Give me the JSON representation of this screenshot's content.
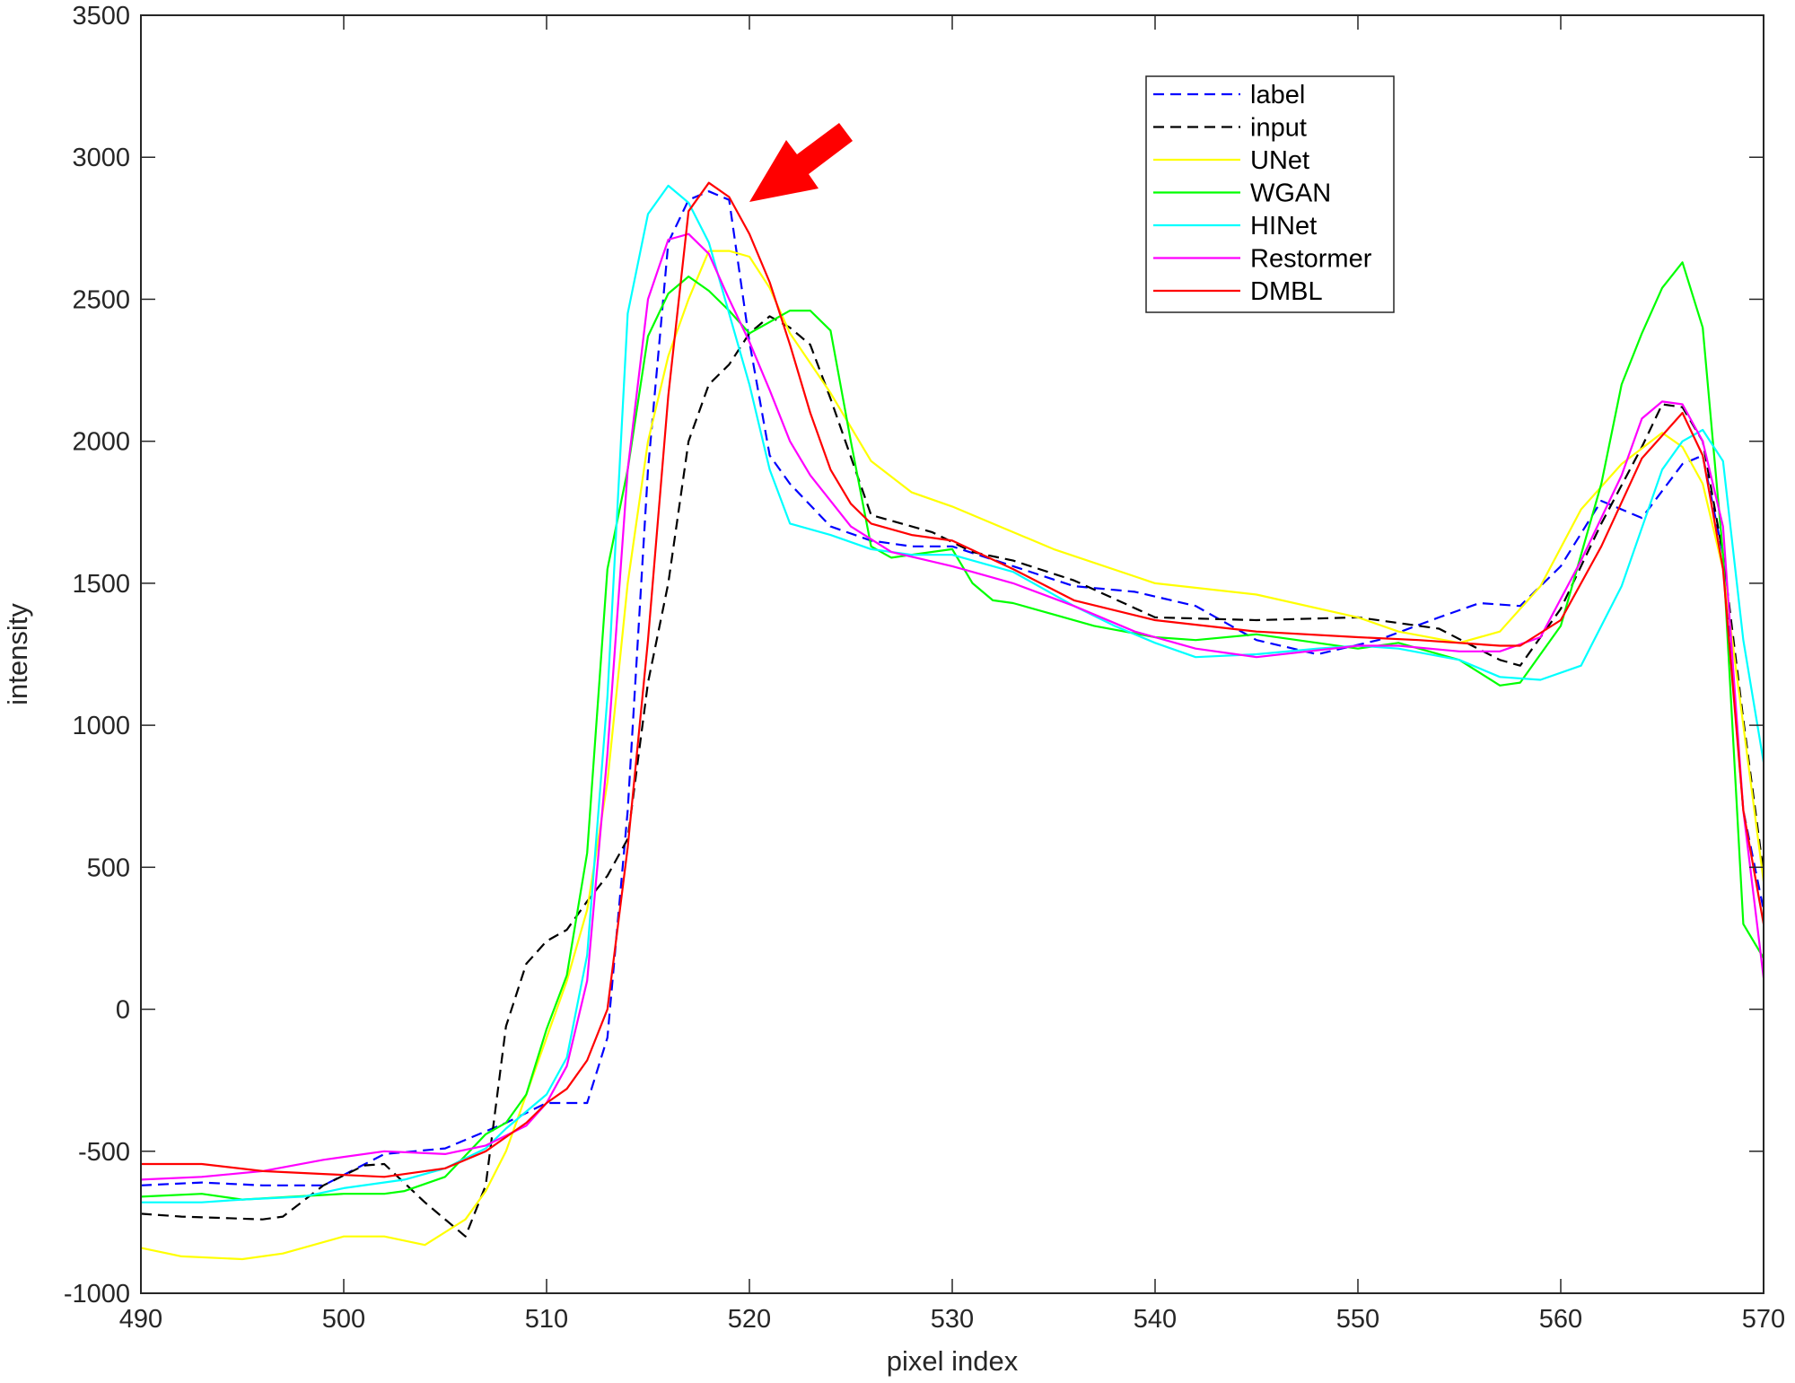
{
  "chart_data": {
    "type": "line",
    "title": "",
    "xlabel": "pixel index",
    "ylabel": "intensity",
    "xlim": [
      490,
      570
    ],
    "ylim": [
      -1000,
      3500
    ],
    "xticks": [
      490,
      500,
      510,
      520,
      530,
      540,
      550,
      560,
      570
    ],
    "yticks": [
      -1000,
      -500,
      0,
      500,
      1000,
      1500,
      2000,
      2500,
      3000,
      3500
    ],
    "grid": false,
    "legend_position": "top-right",
    "annotation": {
      "type": "arrow",
      "color": "#ff0000",
      "points_to": [
        519.5,
        2880
      ]
    },
    "series": [
      {
        "name": "label",
        "color": "#0000ff",
        "dash": true,
        "x": [
          490,
          493,
          496,
          499,
          502,
          505,
          508,
          510,
          512,
          513,
          514,
          515,
          516,
          517,
          518,
          519,
          520,
          521,
          522,
          524,
          526,
          528,
          530,
          533,
          536,
          539,
          542,
          545,
          548,
          551,
          554,
          556,
          558,
          560,
          562,
          564,
          566,
          567,
          568,
          569,
          570
        ],
        "y": [
          -620,
          -610,
          -620,
          -620,
          -510,
          -490,
          -400,
          -330,
          -330,
          -100,
          700,
          1900,
          2700,
          2850,
          2880,
          2850,
          2350,
          1950,
          1850,
          1700,
          1650,
          1630,
          1630,
          1560,
          1490,
          1470,
          1420,
          1300,
          1250,
          1300,
          1380,
          1430,
          1420,
          1560,
          1790,
          1730,
          1920,
          1950,
          1600,
          700,
          350
        ]
      },
      {
        "name": "input",
        "color": "#000000",
        "dash": true,
        "x": [
          490,
          492,
          494,
          496,
          497,
          499,
          501,
          502,
          504,
          506,
          507,
          508,
          509,
          510,
          511,
          512,
          513,
          514,
          515,
          516,
          517,
          518,
          519,
          520,
          521,
          522,
          523,
          524,
          526,
          529,
          531,
          533,
          536,
          540,
          545,
          550,
          554,
          557,
          558,
          560,
          562,
          564,
          565,
          566,
          567,
          568,
          569,
          570
        ],
        "y": [
          -720,
          -730,
          -735,
          -740,
          -730,
          -620,
          -550,
          -545,
          -680,
          -800,
          -620,
          -60,
          160,
          240,
          280,
          380,
          470,
          600,
          1150,
          1500,
          2000,
          2200,
          2270,
          2380,
          2440,
          2400,
          2340,
          2150,
          1740,
          1680,
          1610,
          1580,
          1510,
          1380,
          1370,
          1380,
          1340,
          1230,
          1210,
          1410,
          1710,
          1980,
          2130,
          2120,
          2000,
          1600,
          1020,
          480
        ]
      },
      {
        "name": "UNet",
        "color": "#ffff00",
        "dash": false,
        "x": [
          490,
          492,
          495,
          497,
          500,
          502,
          504,
          506,
          507,
          508,
          509,
          510,
          511,
          512,
          513,
          514,
          515,
          516,
          517,
          518,
          519,
          520,
          521,
          522,
          524,
          526,
          528,
          530,
          535,
          540,
          545,
          550,
          552,
          555,
          557,
          559,
          561,
          563,
          565,
          566,
          567,
          568,
          569,
          570
        ],
        "y": [
          -840,
          -870,
          -880,
          -860,
          -800,
          -800,
          -830,
          -740,
          -640,
          -500,
          -300,
          -100,
          100,
          350,
          800,
          1500,
          2000,
          2300,
          2500,
          2670,
          2670,
          2650,
          2540,
          2380,
          2170,
          1930,
          1820,
          1770,
          1620,
          1500,
          1460,
          1380,
          1330,
          1290,
          1330,
          1490,
          1760,
          1920,
          2030,
          1980,
          1850,
          1550,
          1000,
          450
        ]
      },
      {
        "name": "WGAN",
        "color": "#00ff00",
        "dash": false,
        "x": [
          490,
          493,
          495,
          500,
          502,
          503,
          505,
          507,
          508,
          509,
          510,
          511,
          512,
          513,
          514,
          515,
          516,
          517,
          518,
          519,
          520,
          521,
          522,
          523,
          524,
          525,
          526,
          527,
          528,
          530,
          531,
          532,
          533,
          535,
          537,
          540,
          542,
          545,
          550,
          552,
          555,
          557,
          558,
          560,
          562,
          563,
          564,
          565,
          566,
          567,
          568,
          569,
          570
        ],
        "y": [
          -660,
          -650,
          -670,
          -650,
          -650,
          -640,
          -590,
          -440,
          -400,
          -300,
          -70,
          120,
          550,
          1550,
          1900,
          2370,
          2520,
          2580,
          2530,
          2460,
          2380,
          2420,
          2460,
          2460,
          2390,
          2000,
          1630,
          1590,
          1600,
          1620,
          1500,
          1440,
          1430,
          1390,
          1350,
          1310,
          1300,
          1320,
          1270,
          1290,
          1230,
          1140,
          1150,
          1350,
          1850,
          2200,
          2380,
          2540,
          2630,
          2400,
          1600,
          300,
          180
        ]
      },
      {
        "name": "HINet",
        "color": "#00ffff",
        "dash": false,
        "x": [
          490,
          493,
          495,
          498,
          500,
          503,
          505,
          507,
          508,
          510,
          511,
          512,
          513,
          514,
          515,
          516,
          517,
          518,
          519,
          520,
          521,
          522,
          524,
          526,
          528,
          530,
          533,
          536,
          538,
          540,
          542,
          545,
          548,
          550,
          552,
          555,
          557,
          559,
          561,
          563,
          565,
          566,
          567,
          568,
          569,
          570
        ],
        "y": [
          -680,
          -680,
          -670,
          -660,
          -630,
          -600,
          -560,
          -490,
          -420,
          -300,
          -170,
          190,
          1100,
          2450,
          2800,
          2900,
          2840,
          2700,
          2450,
          2200,
          1900,
          1710,
          1670,
          1620,
          1600,
          1600,
          1540,
          1420,
          1350,
          1290,
          1240,
          1250,
          1270,
          1280,
          1270,
          1230,
          1170,
          1160,
          1210,
          1490,
          1900,
          2000,
          2040,
          1930,
          1300,
          870
        ]
      },
      {
        "name": "Restormer",
        "color": "#ff00ff",
        "dash": false,
        "x": [
          490,
          493,
          496,
          499,
          502,
          505,
          507,
          509,
          510,
          511,
          512,
          513,
          514,
          515,
          516,
          517,
          518,
          519,
          520,
          521,
          522,
          523,
          525,
          527,
          530,
          533,
          536,
          539,
          542,
          545,
          550,
          552,
          555,
          557,
          559,
          561,
          563,
          564,
          565,
          566,
          567,
          568,
          569,
          570
        ],
        "y": [
          -600,
          -590,
          -570,
          -530,
          -500,
          -510,
          -480,
          -410,
          -330,
          -200,
          100,
          900,
          1900,
          2500,
          2710,
          2730,
          2660,
          2500,
          2350,
          2180,
          2000,
          1880,
          1700,
          1610,
          1560,
          1500,
          1420,
          1330,
          1270,
          1240,
          1280,
          1280,
          1260,
          1260,
          1310,
          1580,
          1880,
          2080,
          2140,
          2130,
          2000,
          1700,
          700,
          110
        ]
      },
      {
        "name": "DMBL",
        "color": "#ff0000",
        "dash": false,
        "x": [
          490,
          493,
          496,
          499,
          502,
          505,
          507,
          509,
          510,
          511,
          512,
          513,
          514,
          515,
          516,
          517,
          518,
          519,
          520,
          521,
          522,
          523,
          524,
          525,
          526,
          528,
          530,
          533,
          536,
          540,
          545,
          550,
          553,
          557,
          558,
          560,
          562,
          564,
          566,
          567,
          568,
          569,
          570
        ],
        "y": [
          -545,
          -545,
          -570,
          -580,
          -590,
          -560,
          -500,
          -400,
          -330,
          -280,
          -180,
          0,
          570,
          1300,
          2160,
          2810,
          2910,
          2860,
          2730,
          2560,
          2340,
          2100,
          1900,
          1780,
          1710,
          1670,
          1650,
          1550,
          1440,
          1370,
          1330,
          1310,
          1300,
          1280,
          1280,
          1370,
          1630,
          1940,
          2100,
          1950,
          1550,
          700,
          300
        ]
      }
    ]
  }
}
